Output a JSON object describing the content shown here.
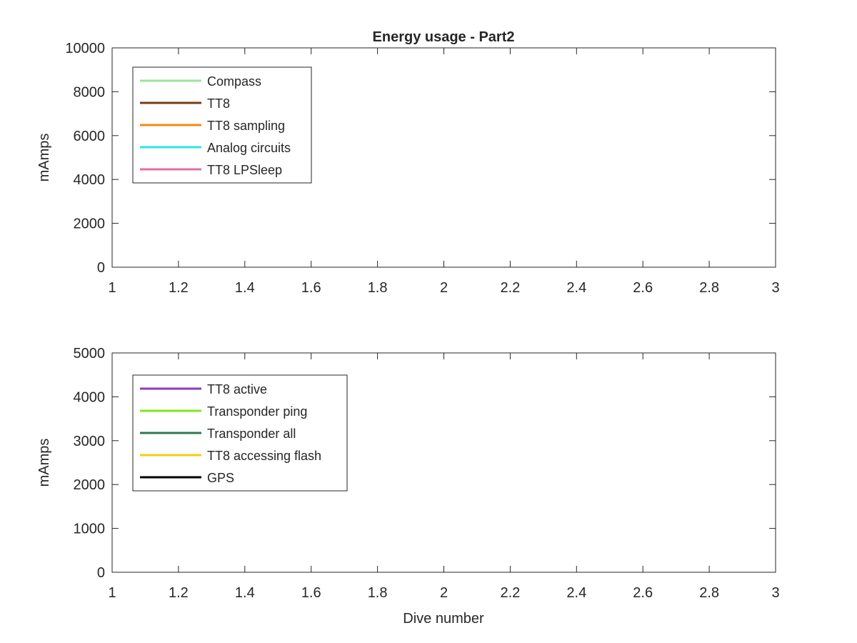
{
  "figure": {
    "title": "Energy usage - Part2",
    "xlabel": "Dive number"
  },
  "chart_data": [
    {
      "type": "line",
      "title": "Energy usage - Part2",
      "xlabel": "",
      "ylabel": "mAmps",
      "xlim": [
        1,
        3
      ],
      "ylim": [
        0,
        10000
      ],
      "xticks": [
        1,
        1.2,
        1.4,
        1.6,
        1.8,
        2,
        2.2,
        2.4,
        2.6,
        2.8,
        3
      ],
      "xtick_labels": [
        "1",
        "1.2",
        "1.4",
        "1.6",
        "1.8",
        "2",
        "2.2",
        "2.4",
        "2.6",
        "2.8",
        "3"
      ],
      "yticks": [
        0,
        2000,
        4000,
        6000,
        8000,
        10000
      ],
      "ytick_labels": [
        "0",
        "2000",
        "4000",
        "6000",
        "8000",
        "10000"
      ],
      "grid": false,
      "legend_position": "top-left",
      "series": [
        {
          "name": "Compass",
          "color": "#99e699",
          "x": [],
          "y": []
        },
        {
          "name": "TT8",
          "color": "#7a3b12",
          "x": [],
          "y": []
        },
        {
          "name": "TT8 sampling",
          "color": "#f08a14",
          "x": [],
          "y": []
        },
        {
          "name": "Analog circuits",
          "color": "#2ee6e6",
          "x": [],
          "y": []
        },
        {
          "name": "TT8 LPSleep",
          "color": "#e66ea6",
          "x": [],
          "y": []
        }
      ]
    },
    {
      "type": "line",
      "title": "",
      "xlabel": "Dive number",
      "ylabel": "mAmps",
      "xlim": [
        1,
        3
      ],
      "ylim": [
        0,
        5000
      ],
      "xticks": [
        1,
        1.2,
        1.4,
        1.6,
        1.8,
        2,
        2.2,
        2.4,
        2.6,
        2.8,
        3
      ],
      "xtick_labels": [
        "1",
        "1.2",
        "1.4",
        "1.6",
        "1.8",
        "2",
        "2.2",
        "2.4",
        "2.6",
        "2.8",
        "3"
      ],
      "yticks": [
        0,
        1000,
        2000,
        3000,
        4000,
        5000
      ],
      "ytick_labels": [
        "0",
        "1000",
        "2000",
        "3000",
        "4000",
        "5000"
      ],
      "grid": false,
      "legend_position": "top-left",
      "series": [
        {
          "name": "TT8 active",
          "color": "#8c3bbf",
          "x": [],
          "y": []
        },
        {
          "name": "Transponder ping",
          "color": "#85e61f",
          "x": [],
          "y": []
        },
        {
          "name": "Transponder all",
          "color": "#2e7a4d",
          "x": [],
          "y": []
        },
        {
          "name": "TT8 accessing flash",
          "color": "#f5cc14",
          "x": [],
          "y": []
        },
        {
          "name": "GPS",
          "color": "#000000",
          "x": [],
          "y": []
        }
      ]
    }
  ]
}
